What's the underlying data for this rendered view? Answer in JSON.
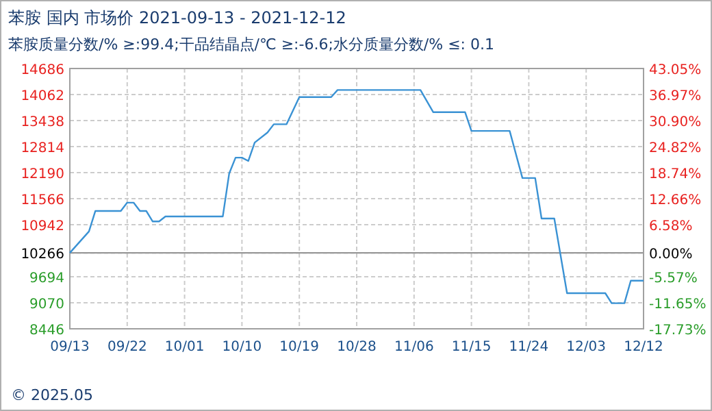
{
  "chart_data": {
    "type": "line",
    "title": "苯胺 国内 市场价 2021-09-13 - 2021-12-12",
    "subtitle": "苯胺质量分数/% ≥:99.4;干品结晶点/℃ ≥:-6.6;水分质量分数/% ≤: 0.1",
    "x": [
      "2021-09-13",
      "2021-09-16",
      "2021-09-17",
      "2021-09-21",
      "2021-09-22",
      "2021-09-23",
      "2021-09-24",
      "2021-09-25",
      "2021-09-26",
      "2021-09-27",
      "2021-09-28",
      "2021-10-07",
      "2021-10-08",
      "2021-10-09",
      "2021-10-10",
      "2021-10-11",
      "2021-10-12",
      "2021-10-14",
      "2021-10-15",
      "2021-10-17",
      "2021-10-19",
      "2021-10-24",
      "2021-10-25",
      "2021-11-07",
      "2021-11-09",
      "2021-11-14",
      "2021-11-15",
      "2021-11-21",
      "2021-11-23",
      "2021-11-25",
      "2021-11-26",
      "2021-11-28",
      "2021-11-30",
      "2021-12-06",
      "2021-12-07",
      "2021-12-09",
      "2021-12-10",
      "2021-12-12"
    ],
    "series": [
      {
        "color": "#3a92d4",
        "values": [
          10266,
          10780,
          11270,
          11270,
          11470,
          11470,
          11270,
          11270,
          11020,
          11020,
          11140,
          11140,
          12170,
          12550,
          12550,
          12470,
          12910,
          13150,
          13350,
          13350,
          14000,
          14000,
          14170,
          14170,
          13640,
          13640,
          13190,
          13190,
          12060,
          12060,
          11090,
          11090,
          9300,
          9300,
          9060,
          9060,
          9600,
          9600
        ]
      }
    ],
    "xlim": [
      "2021-09-13",
      "2021-12-12"
    ],
    "xticks": [
      {
        "value": "2021-09-13",
        "label": "09/13"
      },
      {
        "value": "2021-09-22",
        "label": "09/22"
      },
      {
        "value": "2021-10-01",
        "label": "10/01"
      },
      {
        "value": "2021-10-10",
        "label": "10/10"
      },
      {
        "value": "2021-10-19",
        "label": "10/19"
      },
      {
        "value": "2021-10-28",
        "label": "10/28"
      },
      {
        "value": "2021-11-06",
        "label": "11/06"
      },
      {
        "value": "2021-11-15",
        "label": "11/15"
      },
      {
        "value": "2021-11-24",
        "label": "11/24"
      },
      {
        "value": "2021-12-03",
        "label": "12/03"
      },
      {
        "value": "2021-12-12",
        "label": "12/12"
      }
    ],
    "ylim": [
      8446,
      14686
    ],
    "yticks": [
      8446,
      9070,
      9694,
      10266,
      10942,
      11566,
      12190,
      12814,
      13438,
      14062,
      14686
    ],
    "y2lim": [
      -17.73,
      43.05
    ],
    "y2ticks": [
      {
        "value": -17.73,
        "label": "-17.73%"
      },
      {
        "value": -11.65,
        "label": "-11.65%"
      },
      {
        "value": -5.57,
        "label": "-5.57%"
      },
      {
        "value": 0,
        "label": "0.00%"
      },
      {
        "value": 6.58,
        "label": "6.58%"
      },
      {
        "value": 12.66,
        "label": "12.66%"
      },
      {
        "value": 18.74,
        "label": "18.74%"
      },
      {
        "value": 24.82,
        "label": "24.82%"
      },
      {
        "value": 30.9,
        "label": "30.90%"
      },
      {
        "value": 36.97,
        "label": "36.97%"
      },
      {
        "value": 43.05,
        "label": "43.05%"
      }
    ],
    "grid": true,
    "ref_lines": [
      {
        "axis": "y",
        "value": 10266,
        "color": "#999999"
      }
    ],
    "annotations": [
      "© 2025.05"
    ]
  }
}
